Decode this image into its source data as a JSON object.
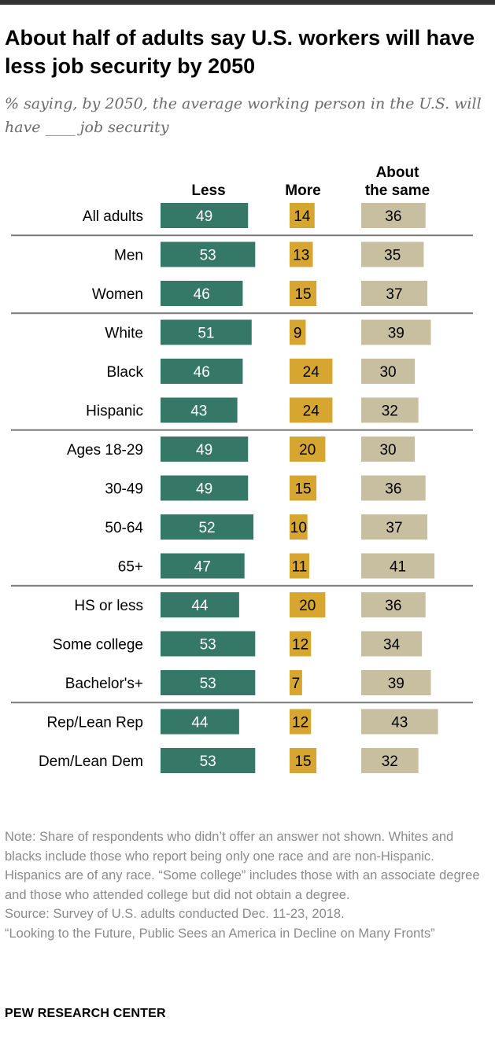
{
  "colors": {
    "topline": "#333333",
    "less": "#367868",
    "more": "#d7a631",
    "same": "#c7bfa0",
    "divider": "#7a7a7a"
  },
  "title": "About half of adults say U.S. workers will have less job security by 2050",
  "subtitle": "% saying, by 2050, the average working person in the U.S. will have ____ job security",
  "chart_data": {
    "type": "bar",
    "orientation": "horizontal",
    "stacking": "none",
    "categories": [
      "All adults",
      "Men",
      "Women",
      "White",
      "Black",
      "Hispanic",
      "Ages 18-29",
      "30-49",
      "50-64",
      "65+",
      "HS or less",
      "Some college",
      "Bachelor's+",
      "Rep/Lean Rep",
      "Dem/Lean Dem"
    ],
    "groups_end_after": [
      0,
      2,
      5,
      9,
      12
    ],
    "series": [
      {
        "name": "Less",
        "header": [
          "Less"
        ],
        "values": [
          49,
          53,
          46,
          51,
          46,
          43,
          49,
          49,
          52,
          47,
          44,
          53,
          53,
          44,
          53
        ]
      },
      {
        "name": "More",
        "header": [
          "More"
        ],
        "values": [
          14,
          13,
          15,
          9,
          24,
          24,
          20,
          15,
          10,
          11,
          20,
          12,
          7,
          12,
          15
        ]
      },
      {
        "name": "About the same",
        "header": [
          "About",
          "the same"
        ],
        "values": [
          36,
          35,
          37,
          39,
          30,
          32,
          30,
          36,
          37,
          41,
          36,
          34,
          39,
          43,
          32
        ]
      }
    ],
    "title": "About half of adults say U.S. workers will have less job security by 2050",
    "xlabel": "",
    "ylabel": "",
    "legend": "column headers above bars"
  },
  "footer": {
    "note": "Note: Share of respondents who didn’t offer an answer not shown. Whites and blacks include those who report being only one race and are non-Hispanic. Hispanics are of any race. “Some college” includes those with an associate degree and those who attended college but did not obtain a degree.",
    "source": "Source: Survey of U.S. adults conducted Dec. 11-23, 2018.",
    "report": "“Looking to the Future, Public Sees an America in Decline on Many Fronts”",
    "brand": "PEW RESEARCH CENTER"
  }
}
